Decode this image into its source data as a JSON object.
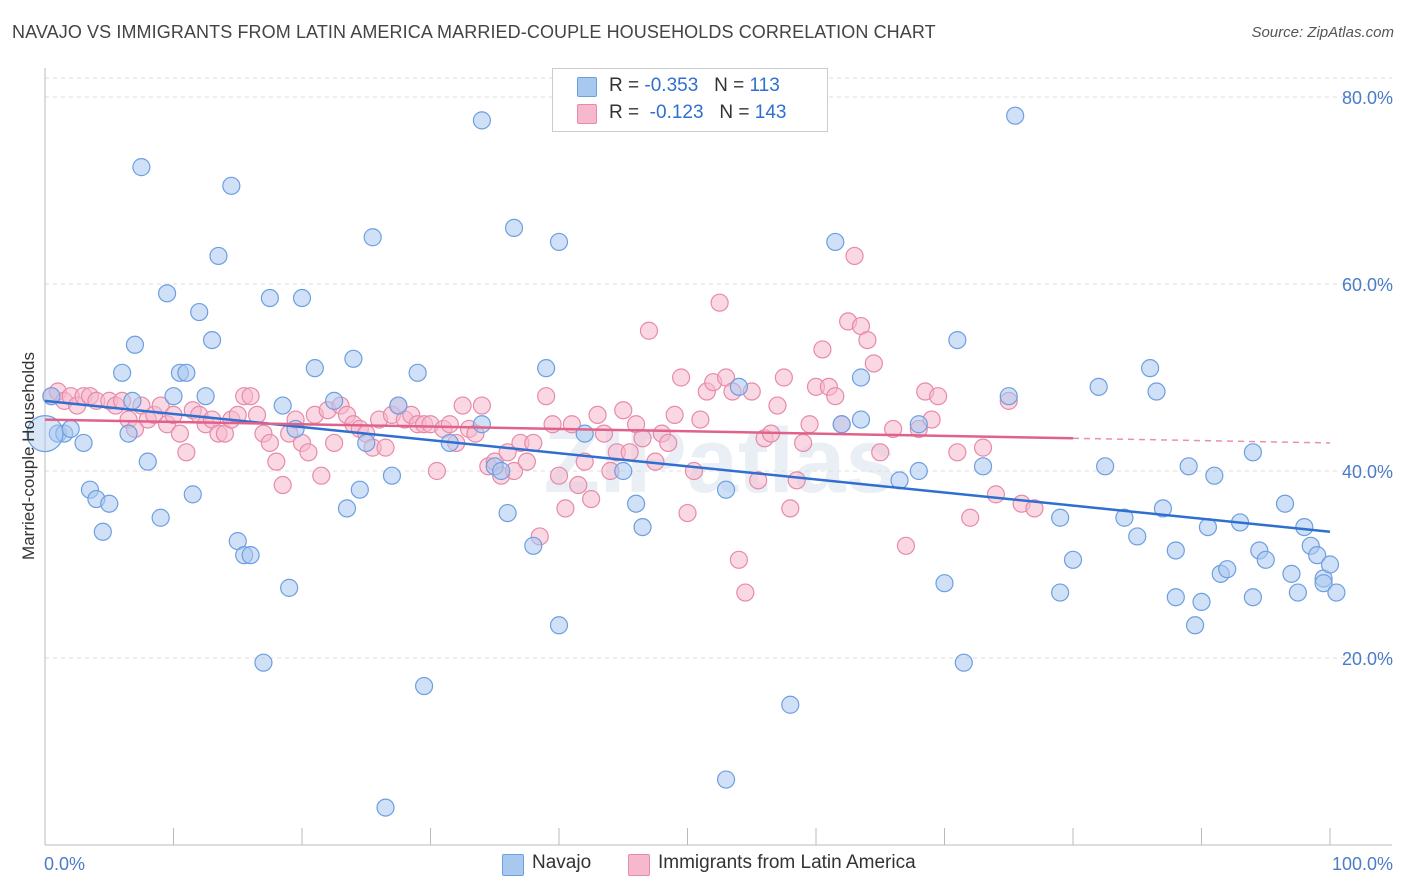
{
  "title": "NAVAJO VS IMMIGRANTS FROM LATIN AMERICA MARRIED-COUPLE HOUSEHOLDS CORRELATION CHART",
  "source": "Source: ZipAtlas.com",
  "watermark": "ZIPatlas",
  "legend": {
    "rows": [
      {
        "r_label": "R =",
        "r_value": "-0.353",
        "n_label": "N =",
        "n_value": "113"
      },
      {
        "r_label": "R =",
        "r_value": "-0.123",
        "n_label": "N =",
        "n_value": "143"
      }
    ]
  },
  "bottom_legend": [
    "Navajo",
    "Immigrants from Latin America"
  ],
  "colors": {
    "navajo_fill": "#a9c8f0",
    "navajo_stroke": "#6d9fe0",
    "navajo_line": "#2f6fd0",
    "latin_fill": "#f6b8cc",
    "latin_stroke": "#e88aa8",
    "latin_line": "#e0628a",
    "tick": "#4a7cc8",
    "grid": "#dcdcdc"
  },
  "chart_data": {
    "type": "scatter",
    "title": "NAVAJO VS IMMIGRANTS FROM LATIN AMERICA MARRIED-COUPLE HOUSEHOLDS CORRELATION CHART",
    "xlabel": "",
    "ylabel": "Married-couple Households",
    "xlim": [
      0,
      100
    ],
    "ylim": [
      0,
      80
    ],
    "x_tick_labels": [
      "0.0%",
      "100.0%"
    ],
    "y_ticks": [
      20,
      40,
      60,
      80
    ],
    "y_tick_labels": [
      "20.0%",
      "40.0%",
      "60.0%",
      "80.0%"
    ],
    "grid": true,
    "legend_position": "top-center",
    "series": [
      {
        "name": "Navajo",
        "r": -0.353,
        "n": 113,
        "trend": {
          "x": [
            0,
            100
          ],
          "y": [
            47.5,
            33.5
          ]
        },
        "points": [
          [
            0.5,
            48
          ],
          [
            1,
            44
          ],
          [
            1.5,
            44
          ],
          [
            2,
            44.5
          ],
          [
            3,
            43
          ],
          [
            3.5,
            38
          ],
          [
            4,
            37
          ],
          [
            4.5,
            33.5
          ],
          [
            5,
            36.5
          ],
          [
            6,
            50.5
          ],
          [
            6.5,
            44
          ],
          [
            6.8,
            47.5
          ],
          [
            7,
            53.5
          ],
          [
            7.5,
            72.5
          ],
          [
            8,
            41
          ],
          [
            9,
            35
          ],
          [
            9.5,
            59
          ],
          [
            10,
            48
          ],
          [
            10.5,
            50.5
          ],
          [
            11,
            50.5
          ],
          [
            11.5,
            37.5
          ],
          [
            12,
            57
          ],
          [
            12.5,
            48
          ],
          [
            13,
            54
          ],
          [
            13.5,
            63
          ],
          [
            14.5,
            70.5
          ],
          [
            15,
            32.5
          ],
          [
            15.5,
            31
          ],
          [
            16,
            31
          ],
          [
            17,
            19.5
          ],
          [
            17.5,
            58.5
          ],
          [
            18.5,
            47
          ],
          [
            19,
            27.5
          ],
          [
            19.5,
            44.5
          ],
          [
            20,
            58.5
          ],
          [
            21,
            51
          ],
          [
            22.5,
            47.5
          ],
          [
            23.5,
            36
          ],
          [
            24,
            52
          ],
          [
            24.5,
            38
          ],
          [
            25,
            43
          ],
          [
            25.5,
            65
          ],
          [
            26.5,
            4
          ],
          [
            27,
            39.5
          ],
          [
            27.5,
            47
          ],
          [
            29,
            50.5
          ],
          [
            29.5,
            17
          ],
          [
            31.5,
            43
          ],
          [
            34,
            77.5
          ],
          [
            34,
            45
          ],
          [
            35,
            40.5
          ],
          [
            35.5,
            40
          ],
          [
            36,
            35.5
          ],
          [
            36.5,
            66
          ],
          [
            38,
            32
          ],
          [
            39,
            51
          ],
          [
            40,
            64.5
          ],
          [
            40,
            23.5
          ],
          [
            42,
            44
          ],
          [
            45,
            40
          ],
          [
            46,
            36.5
          ],
          [
            46.5,
            34
          ],
          [
            53,
            7
          ],
          [
            53,
            38
          ],
          [
            54,
            49
          ],
          [
            58,
            15
          ],
          [
            61.5,
            64.5
          ],
          [
            62,
            45
          ],
          [
            63.5,
            50
          ],
          [
            63.5,
            45.5
          ],
          [
            66.5,
            39
          ],
          [
            68,
            40
          ],
          [
            68,
            45
          ],
          [
            70,
            28
          ],
          [
            71,
            54
          ],
          [
            71.5,
            19.5
          ],
          [
            73,
            40.5
          ],
          [
            75,
            48
          ],
          [
            75.5,
            78
          ],
          [
            79,
            27
          ],
          [
            79,
            35
          ],
          [
            80,
            30.5
          ],
          [
            82,
            49
          ],
          [
            82.5,
            40.5
          ],
          [
            84,
            35
          ],
          [
            85,
            33
          ],
          [
            86,
            51
          ],
          [
            86.5,
            48.5
          ],
          [
            87,
            36
          ],
          [
            88,
            31.5
          ],
          [
            88,
            26.5
          ],
          [
            89,
            40.5
          ],
          [
            89.5,
            23.5
          ],
          [
            90,
            26
          ],
          [
            90.5,
            34
          ],
          [
            91,
            39.5
          ],
          [
            91.5,
            29
          ],
          [
            92,
            29.5
          ],
          [
            93,
            34.5
          ],
          [
            94,
            26.5
          ],
          [
            94,
            42
          ],
          [
            94.5,
            31.5
          ],
          [
            95,
            30.5
          ],
          [
            96.5,
            36.5
          ],
          [
            97,
            29
          ],
          [
            97.5,
            27
          ],
          [
            98,
            34
          ],
          [
            98.5,
            32
          ],
          [
            99,
            31
          ],
          [
            99.5,
            28.5
          ],
          [
            99.5,
            28
          ],
          [
            100,
            30
          ],
          [
            100.5,
            27
          ]
        ]
      },
      {
        "name": "Immigrants from Latin America",
        "r": -0.123,
        "n": 143,
        "trend": {
          "x": [
            0,
            80
          ],
          "y": [
            45.5,
            43.5
          ],
          "dashed_to": [
            100,
            43
          ]
        },
        "points": [
          [
            0.5,
            48
          ],
          [
            1,
            48.5
          ],
          [
            1.5,
            47.5
          ],
          [
            2,
            48
          ],
          [
            2.5,
            47
          ],
          [
            3,
            48
          ],
          [
            3.5,
            48
          ],
          [
            4,
            47.5
          ],
          [
            5,
            47.5
          ],
          [
            5.5,
            47
          ],
          [
            6,
            47.5
          ],
          [
            6.5,
            45.5
          ],
          [
            7,
            44.5
          ],
          [
            7.5,
            47
          ],
          [
            8,
            45.5
          ],
          [
            8.5,
            46
          ],
          [
            9,
            47
          ],
          [
            9.5,
            45
          ],
          [
            10,
            46
          ],
          [
            10.5,
            44
          ],
          [
            11,
            42
          ],
          [
            11.5,
            46.5
          ],
          [
            12,
            46
          ],
          [
            12.5,
            45
          ],
          [
            13,
            45.5
          ],
          [
            13.5,
            44
          ],
          [
            14,
            44
          ],
          [
            14.5,
            45.5
          ],
          [
            15,
            46
          ],
          [
            15.5,
            48
          ],
          [
            16,
            48
          ],
          [
            16.5,
            46
          ],
          [
            17,
            44
          ],
          [
            17.5,
            43
          ],
          [
            18,
            41
          ],
          [
            18.5,
            38.5
          ],
          [
            19,
            44
          ],
          [
            19.5,
            45.5
          ],
          [
            20,
            43
          ],
          [
            20.5,
            42
          ],
          [
            21,
            46
          ],
          [
            21.5,
            39.5
          ],
          [
            22,
            46.5
          ],
          [
            22.5,
            43
          ],
          [
            23,
            47
          ],
          [
            23.5,
            46
          ],
          [
            24,
            45
          ],
          [
            24.5,
            44.5
          ],
          [
            25,
            44
          ],
          [
            25.5,
            42.5
          ],
          [
            26,
            45.5
          ],
          [
            26.5,
            42.5
          ],
          [
            27,
            46
          ],
          [
            27.5,
            47
          ],
          [
            28,
            45.5
          ],
          [
            28.5,
            46
          ],
          [
            29,
            45
          ],
          [
            29.5,
            45
          ],
          [
            30,
            45
          ],
          [
            30.5,
            40
          ],
          [
            31,
            44.5
          ],
          [
            31.5,
            45
          ],
          [
            32,
            43
          ],
          [
            32.5,
            47
          ],
          [
            33,
            44.5
          ],
          [
            33.5,
            44
          ],
          [
            34,
            47
          ],
          [
            34.5,
            40.5
          ],
          [
            35,
            41
          ],
          [
            35.5,
            39.5
          ],
          [
            36,
            42
          ],
          [
            36.5,
            40
          ],
          [
            37,
            43
          ],
          [
            37.5,
            41
          ],
          [
            38,
            43
          ],
          [
            38.5,
            33
          ],
          [
            39,
            48
          ],
          [
            39.5,
            45
          ],
          [
            40,
            39.5
          ],
          [
            40.5,
            36
          ],
          [
            41,
            45
          ],
          [
            41.5,
            38.5
          ],
          [
            42,
            41
          ],
          [
            42.5,
            37
          ],
          [
            43,
            46
          ],
          [
            43.5,
            44
          ],
          [
            44,
            40
          ],
          [
            44.5,
            42
          ],
          [
            45,
            46.5
          ],
          [
            45.5,
            42
          ],
          [
            46,
            45
          ],
          [
            46.5,
            43.5
          ],
          [
            47,
            55
          ],
          [
            47.5,
            41
          ],
          [
            48,
            44
          ],
          [
            48.5,
            43
          ],
          [
            49,
            46
          ],
          [
            49.5,
            50
          ],
          [
            50,
            35.5
          ],
          [
            50.5,
            40
          ],
          [
            51,
            45.5
          ],
          [
            51.5,
            48.5
          ],
          [
            52,
            49.5
          ],
          [
            52.5,
            58
          ],
          [
            53,
            50
          ],
          [
            53.5,
            48.5
          ],
          [
            54,
            30.5
          ],
          [
            54.5,
            27
          ],
          [
            55,
            48.5
          ],
          [
            55.5,
            39
          ],
          [
            56,
            43.5
          ],
          [
            56.5,
            44
          ],
          [
            57,
            47
          ],
          [
            57.5,
            50
          ],
          [
            58,
            36
          ],
          [
            58.5,
            39
          ],
          [
            59,
            43
          ],
          [
            59.5,
            45
          ],
          [
            60,
            49
          ],
          [
            60.5,
            53
          ],
          [
            61,
            49
          ],
          [
            61.5,
            48
          ],
          [
            62,
            45
          ],
          [
            62.5,
            56
          ],
          [
            63,
            63
          ],
          [
            63.5,
            55.5
          ],
          [
            64,
            54
          ],
          [
            64.5,
            51.5
          ],
          [
            65,
            42
          ],
          [
            66,
            44.5
          ],
          [
            67,
            32
          ],
          [
            68,
            44.5
          ],
          [
            68.5,
            48.5
          ],
          [
            69,
            45.5
          ],
          [
            69.5,
            48
          ],
          [
            71,
            42
          ],
          [
            72,
            35
          ],
          [
            73,
            42.5
          ],
          [
            74,
            37.5
          ],
          [
            75,
            47.5
          ],
          [
            76,
            36.5
          ],
          [
            77,
            36
          ]
        ]
      }
    ]
  }
}
